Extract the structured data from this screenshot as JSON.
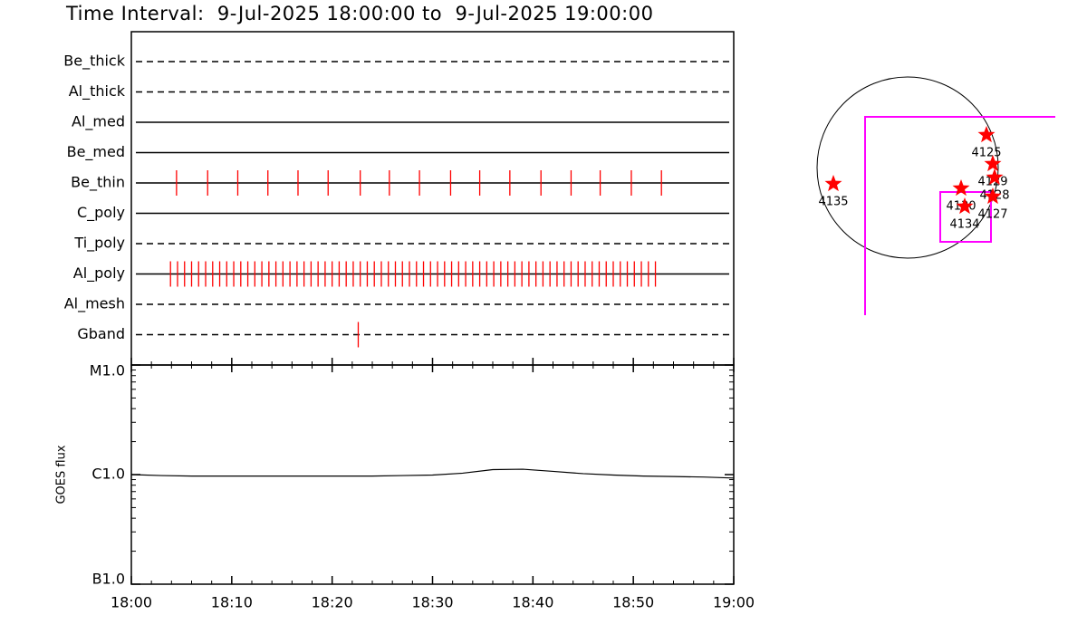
{
  "title": "Time Interval:  9-Jul-2025 18:00:00 to  9-Jul-2025 19:00:00",
  "chart_data": [
    {
      "type": "timeline",
      "color": "#ff0000",
      "xlim": [
        0,
        60
      ],
      "series": [
        {
          "name": "Be_thick",
          "style": "dashed",
          "values": []
        },
        {
          "name": "Al_thick",
          "style": "dashed",
          "values": []
        },
        {
          "name": "Al_med",
          "style": "solid",
          "values": []
        },
        {
          "name": "Be_med",
          "style": "solid",
          "values": []
        },
        {
          "name": "Be_thin",
          "style": "solid",
          "values": [
            4.5,
            7.6,
            10.6,
            13.6,
            16.6,
            19.6,
            22.8,
            25.7,
            28.7,
            31.8,
            34.7,
            37.7,
            40.8,
            43.8,
            46.7,
            49.8,
            52.8
          ]
        },
        {
          "name": "C_poly",
          "style": "solid",
          "values": []
        },
        {
          "name": "Ti_poly",
          "style": "dashed",
          "values": []
        },
        {
          "name": "Al_poly",
          "style": "solid",
          "values": [
            3.9,
            4.6,
            5.3,
            6.0,
            6.7,
            7.4,
            8.1,
            8.8,
            9.5,
            10.2,
            10.9,
            11.6,
            12.3,
            13.0,
            13.7,
            14.4,
            15.1,
            15.8,
            16.5,
            17.2,
            17.9,
            18.6,
            19.3,
            20.0,
            20.7,
            21.4,
            22.1,
            22.8,
            23.5,
            24.2,
            24.9,
            25.6,
            26.3,
            27.0,
            27.7,
            28.4,
            29.1,
            29.8,
            30.5,
            31.2,
            31.9,
            32.6,
            33.3,
            34.0,
            34.7,
            35.4,
            36.1,
            36.8,
            37.5,
            38.2,
            38.9,
            39.6,
            40.3,
            41.0,
            41.7,
            42.4,
            43.1,
            43.8,
            44.5,
            45.2,
            45.9,
            46.6,
            47.3,
            48.0,
            48.7,
            49.4,
            50.1,
            50.8,
            51.5,
            52.2
          ]
        },
        {
          "name": "Al_mesh",
          "style": "dashed",
          "values": []
        },
        {
          "name": "Gband",
          "style": "dashed",
          "values": [
            22.6
          ]
        }
      ]
    },
    {
      "type": "line",
      "y_label": "GOES flux",
      "log_y": true,
      "color": "#000000",
      "xlim": [
        0,
        60
      ],
      "xticks": [
        {
          "value": 0,
          "label": "18:00"
        },
        {
          "value": 10,
          "label": "18:10"
        },
        {
          "value": 20,
          "label": "18:20"
        },
        {
          "value": 30,
          "label": "18:30"
        },
        {
          "value": 40,
          "label": "18:40"
        },
        {
          "value": 50,
          "label": "18:50"
        },
        {
          "value": 60,
          "label": "19:00"
        }
      ],
      "ylim": [
        1e-07,
        1e-05
      ],
      "yticks": [
        {
          "value": 1e-07,
          "label": "B1.0"
        },
        {
          "value": 1e-06,
          "label": "C1.0"
        },
        {
          "value": 1e-05,
          "label": "M1.0"
        }
      ],
      "x": [
        0,
        3,
        6,
        9,
        12,
        15,
        18,
        21,
        24,
        27,
        30,
        33,
        36,
        39,
        42,
        45,
        48,
        51,
        54,
        57,
        60
      ],
      "values": [
        1e-06,
        9.8e-07,
        9.7e-07,
        9.7e-07,
        9.7e-07,
        9.7e-07,
        9.7e-07,
        9.7e-07,
        9.7e-07,
        9.8e-07,
        9.9e-07,
        1.03e-06,
        1.11e-06,
        1.12e-06,
        1.07e-06,
        1.02e-06,
        9.9e-07,
        9.7e-07,
        9.6e-07,
        9.5e-07,
        9.3e-07
      ]
    },
    {
      "type": "map",
      "color": "#ff0000",
      "labels": [
        "4125",
        "4129",
        "4128",
        "4127",
        "4130",
        "4134",
        "4135"
      ]
    }
  ]
}
